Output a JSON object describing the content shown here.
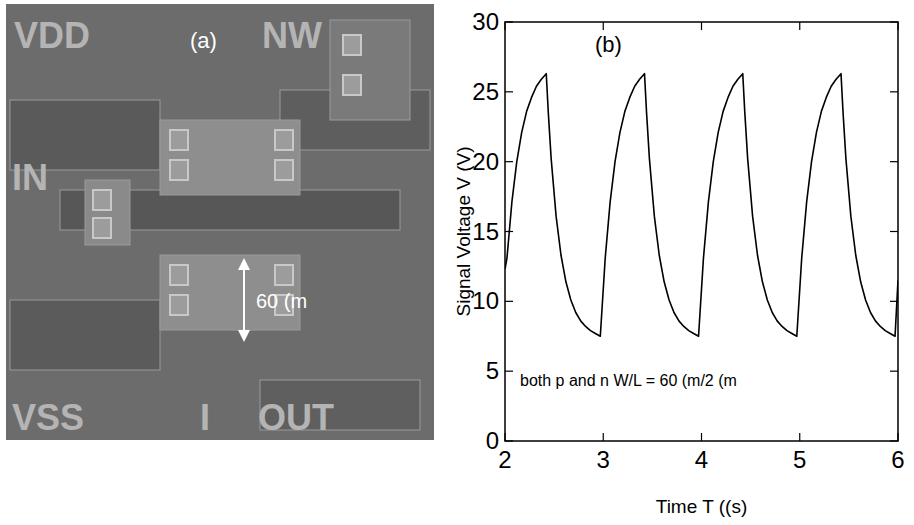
{
  "micrograph": {
    "panel_label": "(a)",
    "labels": [
      "VDD",
      "NW",
      "IN",
      "VSS",
      "I",
      "OUT"
    ],
    "scale_bar": "60 (m"
  },
  "chart_data": {
    "type": "line",
    "color": "#000000",
    "x_label": "Time T ((s)",
    "y_label": "Signal Voltage V (V)",
    "annotations": [
      "(b)",
      "both p and n W/L = 60 (m/2 (m"
    ],
    "xlim": [
      2,
      6
    ],
    "ylim": [
      0,
      30
    ],
    "xticks": [
      2,
      3,
      4,
      5,
      6
    ],
    "yticks": [
      0,
      5,
      10,
      15,
      20,
      25,
      30
    ],
    "x": [
      2.0,
      2.02,
      2.07,
      2.12,
      2.17,
      2.22,
      2.27,
      2.32,
      2.37,
      2.42,
      2.44,
      2.47,
      2.52,
      2.57,
      2.62,
      2.67,
      2.72,
      2.77,
      2.82,
      2.87,
      2.92,
      2.97,
      3.02,
      3.07,
      3.12,
      3.17,
      3.22,
      3.27,
      3.32,
      3.37,
      3.42,
      3.44,
      3.47,
      3.52,
      3.57,
      3.62,
      3.67,
      3.72,
      3.77,
      3.82,
      3.87,
      3.92,
      3.97,
      4.02,
      4.07,
      4.12,
      4.17,
      4.22,
      4.27,
      4.32,
      4.37,
      4.42,
      4.44,
      4.47,
      4.52,
      4.57,
      4.62,
      4.67,
      4.72,
      4.77,
      4.82,
      4.87,
      4.92,
      4.97,
      5.02,
      5.07,
      5.12,
      5.17,
      5.22,
      5.27,
      5.32,
      5.37,
      5.42,
      5.44,
      5.47,
      5.52,
      5.57,
      5.62,
      5.67,
      5.72,
      5.77,
      5.82,
      5.87,
      5.92,
      5.97,
      6.0
    ],
    "values": [
      12.3,
      13.1,
      17.1,
      20.0,
      22.1,
      23.6,
      24.6,
      25.4,
      25.9,
      26.3,
      23.6,
      20.2,
      16.1,
      13.3,
      11.4,
      10.1,
      9.2,
      8.6,
      8.2,
      7.9,
      7.7,
      7.5,
      13.1,
      17.1,
      20.0,
      22.1,
      23.6,
      24.6,
      25.4,
      25.9,
      26.3,
      23.6,
      20.2,
      16.1,
      13.3,
      11.4,
      10.1,
      9.2,
      8.6,
      8.2,
      7.9,
      7.7,
      7.5,
      13.1,
      17.1,
      20.0,
      22.1,
      23.6,
      24.6,
      25.4,
      25.9,
      26.3,
      23.6,
      20.2,
      16.1,
      13.3,
      11.4,
      10.1,
      9.2,
      8.6,
      8.2,
      7.9,
      7.7,
      7.5,
      13.1,
      17.1,
      20.0,
      22.1,
      23.6,
      24.6,
      25.4,
      25.9,
      26.3,
      23.6,
      20.2,
      16.1,
      13.3,
      11.4,
      10.1,
      9.2,
      8.6,
      8.2,
      7.9,
      7.7,
      7.5,
      11.5
    ]
  }
}
